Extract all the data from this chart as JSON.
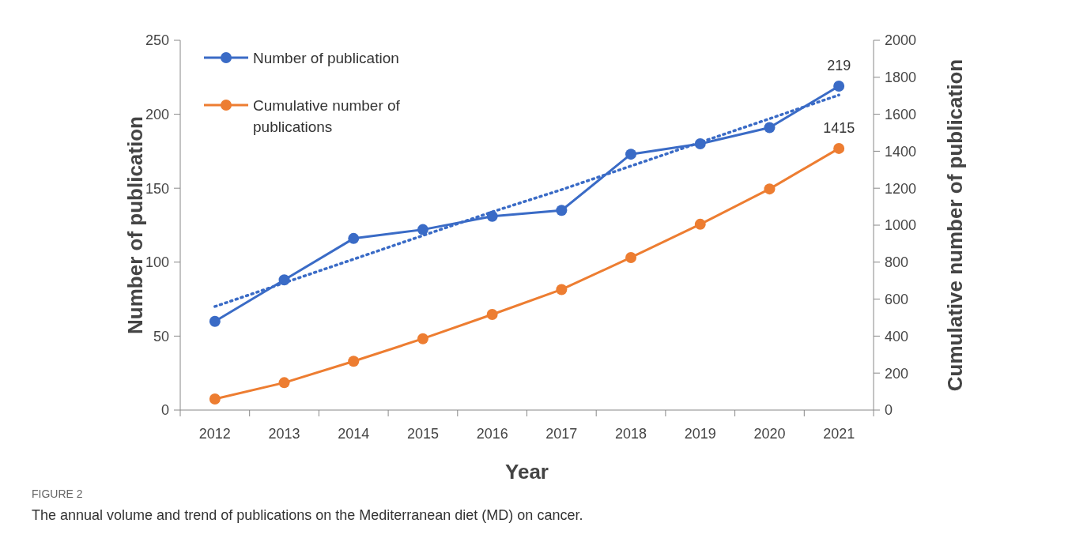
{
  "chart_data": {
    "type": "line",
    "xlabel": "Year",
    "ylabel": "Number of publication",
    "y2label": "Cumulative number of publication",
    "categories": [
      "2012",
      "2013",
      "2014",
      "2015",
      "2016",
      "2017",
      "2018",
      "2019",
      "2020",
      "2021"
    ],
    "series": [
      {
        "name": "Number of publication",
        "color": "#3a6bc6",
        "values": [
          60,
          88,
          116,
          122,
          131,
          135,
          173,
          180,
          191,
          219
        ],
        "value_labels": [
          null,
          null,
          null,
          null,
          null,
          null,
          null,
          null,
          null,
          "219"
        ]
      },
      {
        "name": "Cumulative number of publications",
        "color": "#ed7d31",
        "axis": "y2",
        "values": [
          60,
          148,
          264,
          386,
          517,
          652,
          825,
          1005,
          1196,
          1415
        ],
        "value_labels": [
          null,
          null,
          null,
          null,
          null,
          null,
          null,
          null,
          null,
          "1415"
        ]
      },
      {
        "type": "line",
        "color": "#3a6bc6",
        "values": [
          70,
          86,
          102,
          118,
          134,
          149,
          165,
          181,
          197,
          213
        ],
        "marker": "none",
        "line_style": "dotted"
      }
    ],
    "ylim": [
      0,
      250
    ],
    "yticks": [
      0,
      50,
      100,
      150,
      200,
      250
    ],
    "y2lim": [
      0,
      2000
    ],
    "y2ticks": [
      0,
      200,
      400,
      600,
      800,
      1000,
      1200,
      1400,
      1600,
      1800,
      2000
    ],
    "marker": "circle",
    "grid": false,
    "legend": "top left",
    "annotations": [
      "FIGURE 2",
      "The annual volume and trend of publications on the Mediterranean diet (MD) on cancer."
    ]
  }
}
